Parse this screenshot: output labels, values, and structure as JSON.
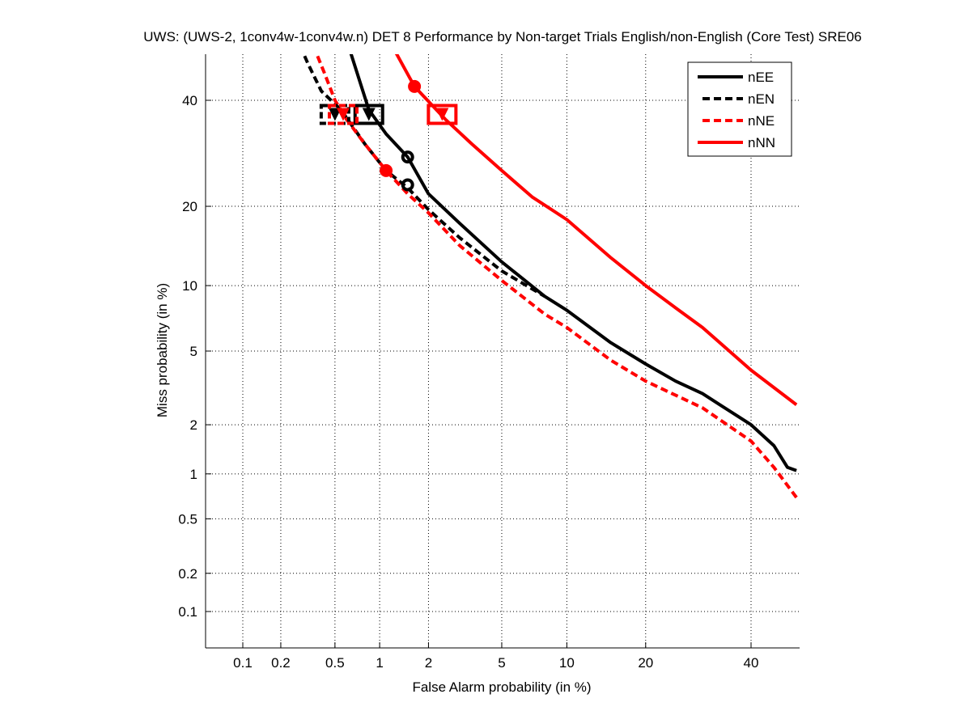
{
  "chart_data": {
    "type": "line",
    "scale": "probit",
    "title": "UWS: (UWS-2, 1conv4w-1conv4w.n) DET 8 Performance by Non-target Trials English/non-English (Core Test) SRE06",
    "xlabel": "False Alarm probability (in %)",
    "ylabel": "Miss probability (in %)",
    "xlim": [
      0.05,
      50
    ],
    "ylim": [
      0.05,
      52
    ],
    "xticks": [
      0.1,
      0.2,
      0.5,
      1,
      2,
      5,
      10,
      20,
      40
    ],
    "xtick_labels": [
      "0.1",
      "0.2",
      "0.5",
      "1",
      "2",
      "5",
      "10",
      "20",
      "40"
    ],
    "yticks": [
      0.1,
      0.2,
      0.5,
      1,
      2,
      5,
      10,
      20,
      40
    ],
    "ytick_labels": [
      "0.1",
      "0.2",
      "0.5",
      "1",
      "2",
      "5",
      "10",
      "20",
      "40"
    ],
    "grid": true,
    "legend_position": "top-right",
    "series": [
      {
        "name": "nEE",
        "color": "#000000",
        "style": "solid",
        "x": [
          0.62,
          0.85,
          1.1,
          1.5,
          2,
          3,
          5,
          8,
          10,
          15,
          20,
          25,
          30,
          40,
          45,
          48,
          50
        ],
        "y": [
          52,
          38,
          33,
          28.5,
          22,
          17.5,
          12.5,
          9,
          7.8,
          5.5,
          4.3,
          3.5,
          3,
          2,
          1.5,
          1.1,
          1.05
        ],
        "dcf_marker": {
          "x": 0.85,
          "y": 37
        },
        "circle_marker": {
          "x": 1.5,
          "y": 28.5
        }
      },
      {
        "name": "nEN",
        "color": "#000000",
        "style": "dashed",
        "x": [
          0.28,
          0.32,
          0.4,
          0.55,
          0.8,
          1.1,
          1.5,
          2,
          3,
          5,
          8
        ],
        "y": [
          52,
          48,
          42,
          38,
          31,
          26,
          23,
          19.5,
          15.5,
          11.5,
          9
        ],
        "dcf_marker": {
          "x": 0.5,
          "y": 37
        },
        "circle_marker": {
          "x": 1.5,
          "y": 23.5
        }
      },
      {
        "name": "nNE",
        "color": "#ff0000",
        "style": "dashed",
        "x": [
          0.35,
          0.42,
          0.5,
          0.6,
          0.8,
          1.1,
          1.5,
          2,
          3,
          5,
          8,
          10,
          15,
          20,
          30,
          40,
          45,
          50
        ],
        "y": [
          52,
          46,
          40,
          36,
          31,
          26,
          22,
          19,
          14.5,
          10.5,
          7.5,
          6.5,
          4.5,
          3.5,
          2.5,
          1.6,
          1.1,
          0.7
        ],
        "dcf_marker": {
          "x": 0.57,
          "y": 37
        },
        "circle_marker": {
          "x": 1.1,
          "y": 26
        }
      },
      {
        "name": "nNN",
        "color": "#ff0000",
        "style": "solid",
        "x": [
          1.2,
          1.65,
          2.5,
          3.5,
          5,
          7,
          10,
          15,
          20,
          25,
          30,
          40,
          50
        ],
        "y": [
          52,
          43,
          36,
          31,
          26,
          21.5,
          18,
          13,
          10,
          8,
          6.5,
          4,
          2.6
        ],
        "dcf_marker": {
          "x": 2.4,
          "y": 37
        },
        "circle_marker": {
          "x": 1.65,
          "y": 43
        }
      }
    ]
  }
}
